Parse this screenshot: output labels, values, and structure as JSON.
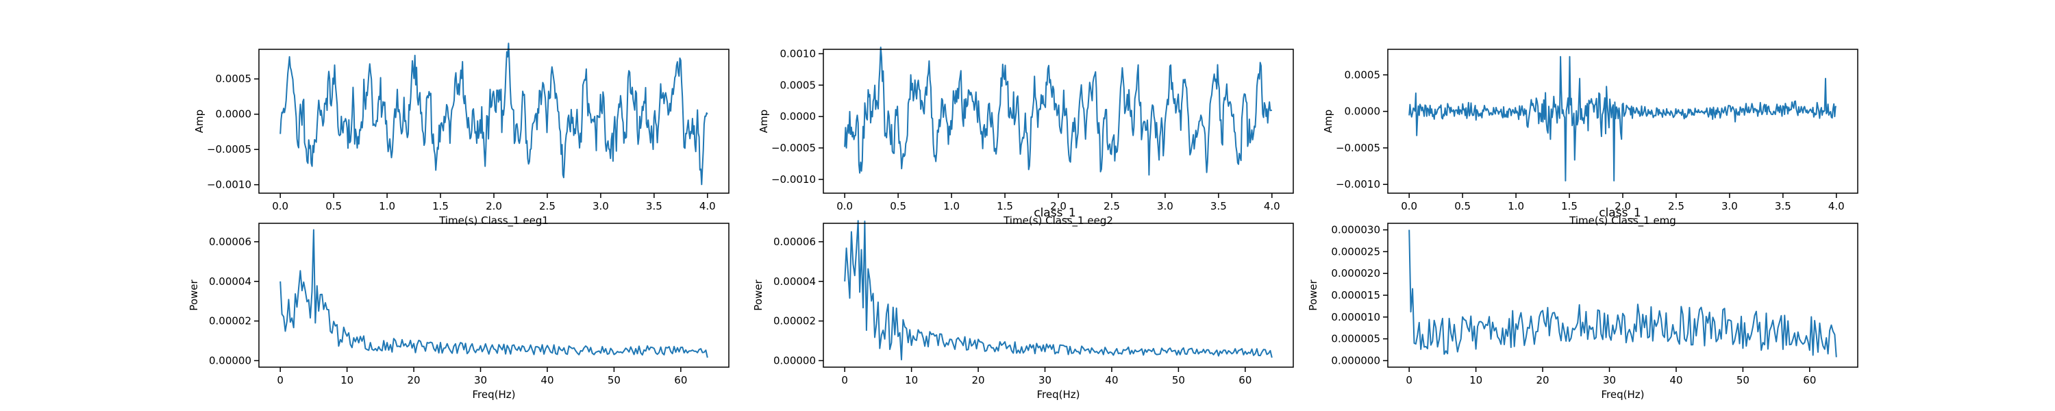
{
  "figure": {
    "title_center": "class_1",
    "title_right": "class_1"
  },
  "chart_data": [
    {
      "type": "line",
      "row": 0,
      "col": 0,
      "xlabel": "Time(s) Class_1 eeg1",
      "ylabel": "Amp",
      "xlim": [
        -0.2,
        4.2
      ],
      "ylim": [
        -0.00112,
        0.00092
      ],
      "xticks": [
        0.0,
        0.5,
        1.0,
        1.5,
        2.0,
        2.5,
        3.0,
        3.5,
        4.0
      ],
      "xtick_labels": [
        "0.0",
        "0.5",
        "1.0",
        "1.5",
        "2.0",
        "2.5",
        "3.0",
        "3.5",
        "4.0"
      ],
      "yticks": [
        -0.001,
        -0.0005,
        0.0,
        0.0005
      ],
      "ytick_labels": [
        "−0.0010",
        "−0.0005",
        "0.0000",
        "0.0005"
      ],
      "x_range": [
        0,
        4
      ],
      "n_points": 512,
      "seed": 11,
      "signal": {
        "kind": "eeg",
        "amp": 0.00034,
        "peak": 0.00088,
        "trough": -0.00099
      },
      "color": "#1f77b4"
    },
    {
      "type": "line",
      "row": 0,
      "col": 1,
      "xlabel": "Time(s) Class_1 eeg2",
      "ylabel": "Amp",
      "xlim": [
        -0.2,
        4.2
      ],
      "ylim": [
        -0.00122,
        0.00107
      ],
      "xticks": [
        0.0,
        0.5,
        1.0,
        1.5,
        2.0,
        2.5,
        3.0,
        3.5,
        4.0
      ],
      "xtick_labels": [
        "0.0",
        "0.5",
        "1.0",
        "1.5",
        "2.0",
        "2.5",
        "3.0",
        "3.5",
        "4.0"
      ],
      "yticks": [
        -0.001,
        -0.0005,
        0.0,
        0.0005,
        0.001
      ],
      "ytick_labels": [
        "−0.0010",
        "−0.0005",
        "0.0000",
        "0.0005",
        "0.0010"
      ],
      "x_range": [
        0,
        4
      ],
      "n_points": 512,
      "seed": 23,
      "signal": {
        "kind": "eeg",
        "amp": 0.00036,
        "peak": 0.00095,
        "trough": -0.00112
      },
      "color": "#1f77b4"
    },
    {
      "type": "line",
      "row": 0,
      "col": 2,
      "xlabel": "Time(s) Class_1 emg",
      "ylabel": "Amp",
      "xlim": [
        -0.2,
        4.2
      ],
      "ylim": [
        -0.00112,
        0.00085
      ],
      "xticks": [
        0.0,
        0.5,
        1.0,
        1.5,
        2.0,
        2.5,
        3.0,
        3.5,
        4.0
      ],
      "xtick_labels": [
        "0.0",
        "0.5",
        "1.0",
        "1.5",
        "2.0",
        "2.5",
        "3.0",
        "3.5",
        "4.0"
      ],
      "yticks": [
        -0.001,
        -0.0005,
        0.0,
        0.0005
      ],
      "ytick_labels": [
        "−0.0010",
        "−0.0005",
        "0.0000",
        "0.0005"
      ],
      "x_range": [
        0,
        4
      ],
      "n_points": 512,
      "seed": 37,
      "signal": {
        "kind": "emg",
        "amp": 5e-05,
        "peak": 0.00075,
        "trough": -0.00095
      },
      "color": "#1f77b4"
    },
    {
      "type": "line",
      "row": 1,
      "col": 0,
      "xlabel": "Freq(Hz)",
      "ylabel": "Power",
      "xlim": [
        -3.2,
        67.2
      ],
      "ylim": [
        -3.3e-06,
        6.93e-05
      ],
      "xticks": [
        0,
        10,
        20,
        30,
        40,
        50,
        60
      ],
      "xtick_labels": [
        "0",
        "10",
        "20",
        "30",
        "40",
        "50",
        "60"
      ],
      "yticks": [
        0.0,
        2e-05,
        4e-05,
        6e-05
      ],
      "ytick_labels": [
        "0.00000",
        "0.00002",
        "0.00004",
        "0.00006"
      ],
      "x_range": [
        0,
        64
      ],
      "n_points": 257,
      "seed": 51,
      "signal": {
        "kind": "psd",
        "peak_freq": 5,
        "peak_value": 6.6e-05,
        "floor": 5e-06,
        "low_mid": 2e-05
      },
      "color": "#1f77b4"
    },
    {
      "type": "line",
      "row": 1,
      "col": 1,
      "xlabel": "Freq(Hz)",
      "ylabel": "Power",
      "xlim": [
        -3.2,
        67.2
      ],
      "ylim": [
        -3.3e-06,
        6.93e-05
      ],
      "xticks": [
        0,
        10,
        20,
        30,
        40,
        50,
        60
      ],
      "xtick_labels": [
        "0",
        "10",
        "20",
        "30",
        "40",
        "50",
        "60"
      ],
      "yticks": [
        0.0,
        2e-05,
        4e-05,
        6e-05
      ],
      "ytick_labels": [
        "0.00000",
        "0.00002",
        "0.00004",
        "0.00006"
      ],
      "x_range": [
        0,
        64
      ],
      "n_points": 257,
      "seed": 67,
      "signal": {
        "kind": "psd",
        "peak_freq": 1,
        "peak_value": 6.5e-05,
        "floor": 4e-06,
        "low_mid": 3.5e-05
      },
      "color": "#1f77b4"
    },
    {
      "type": "line",
      "row": 1,
      "col": 2,
      "xlabel": "Freq(Hz)",
      "ylabel": "Power",
      "xlim": [
        -3.2,
        67.2
      ],
      "ylim": [
        -1.5e-06,
        3.15e-05
      ],
      "xticks": [
        0,
        10,
        20,
        30,
        40,
        50,
        60
      ],
      "xtick_labels": [
        "0",
        "10",
        "20",
        "30",
        "40",
        "50",
        "60"
      ],
      "yticks": [
        0.0,
        5e-06,
        1e-05,
        1.5e-05,
        2e-05,
        2.5e-05,
        3e-05
      ],
      "ytick_labels": [
        "0.000000",
        "0.000005",
        "0.000010",
        "0.000015",
        "0.000020",
        "0.000025",
        "0.000030"
      ],
      "x_range": [
        0,
        64
      ],
      "n_points": 257,
      "seed": 83,
      "signal": {
        "kind": "psd_flat",
        "peak_freq": 0,
        "peak_value": 3e-05,
        "floor": 5e-06,
        "low_mid": 7e-06
      },
      "color": "#1f77b4"
    }
  ]
}
